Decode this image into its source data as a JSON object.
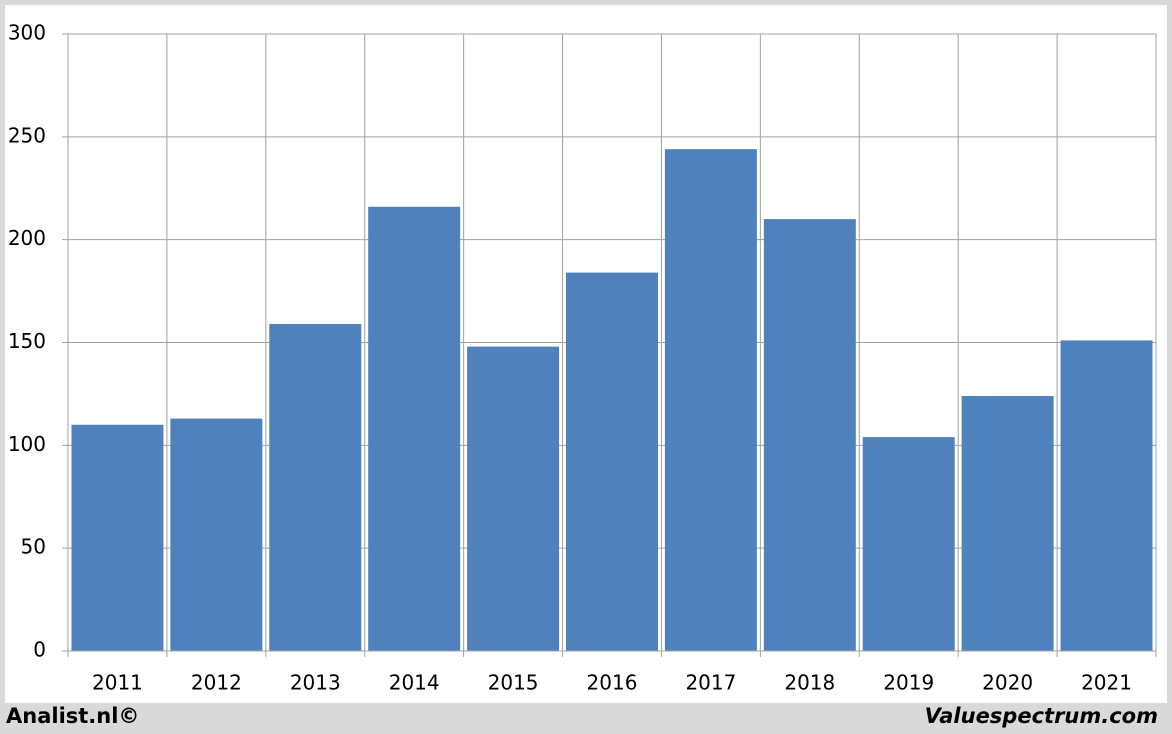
{
  "chart_data": {
    "type": "bar",
    "categories": [
      "2011",
      "2012",
      "2013",
      "2014",
      "2015",
      "2016",
      "2017",
      "2018",
      "2019",
      "2020",
      "2021"
    ],
    "values": [
      110,
      113,
      159,
      216,
      148,
      184,
      244,
      210,
      104,
      124,
      151
    ],
    "color": "#4f81bd",
    "ylim": [
      0,
      300
    ],
    "yticks": [
      0,
      50,
      100,
      150,
      200,
      250,
      300
    ],
    "grid": true,
    "footer_left": "Analist.nl©",
    "footer_right": "Valuespectrum.com"
  }
}
